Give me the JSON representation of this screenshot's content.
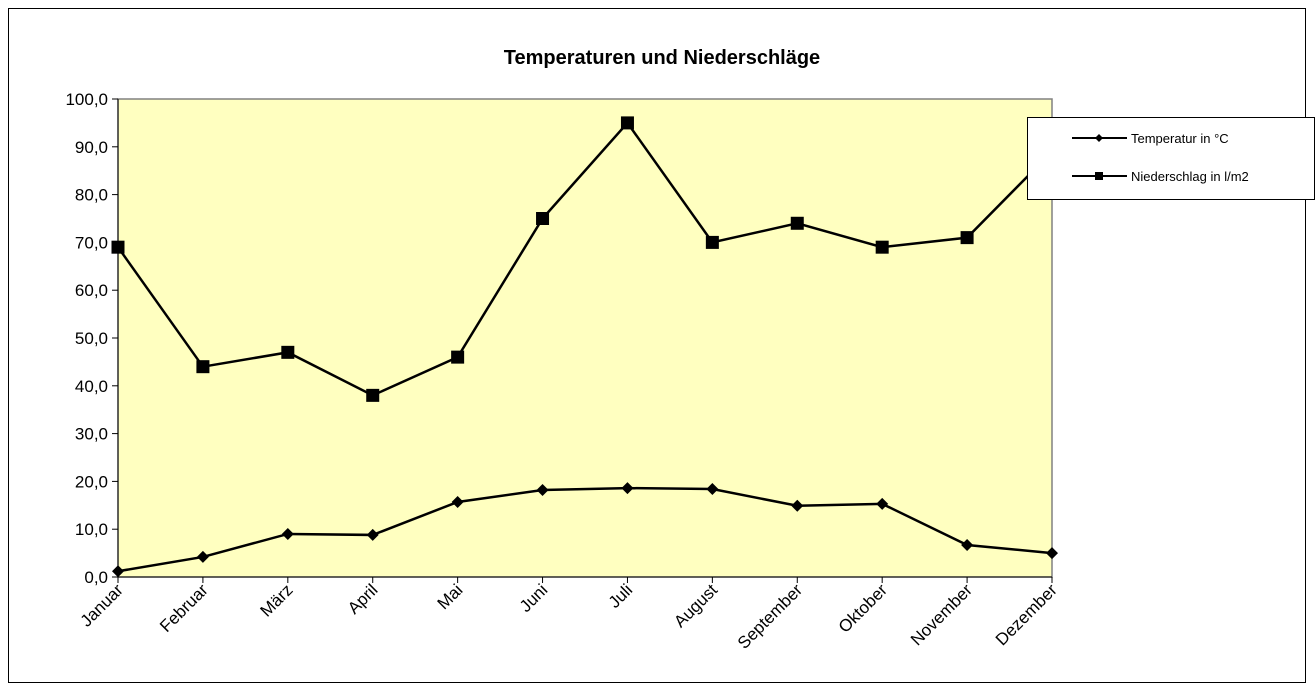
{
  "chart_data": {
    "type": "line",
    "title": "Temperaturen und Niederschläge",
    "categories": [
      "Januar",
      "Februar",
      "März",
      "April",
      "Mai",
      "Juni",
      "Juli",
      "August",
      "September",
      "Oktober",
      "November",
      "Dezember"
    ],
    "series": [
      {
        "name": "Temperatur in °C",
        "color": "#000000",
        "marker": "diamond",
        "values": [
          1.2,
          4.2,
          9.0,
          8.8,
          15.7,
          18.2,
          18.6,
          18.4,
          14.9,
          15.3,
          6.7,
          5.0
        ]
      },
      {
        "name": "Niederschlag in l/m2",
        "color": "#000000",
        "marker": "square",
        "values": [
          69,
          44,
          47,
          38,
          46,
          75,
          95,
          70,
          74,
          69,
          71,
          89
        ]
      }
    ],
    "ylim": [
      0,
      100
    ],
    "yticks": [
      {
        "value": 0,
        "label": "0,0"
      },
      {
        "value": 10,
        "label": "10,0"
      },
      {
        "value": 20,
        "label": "20,0"
      },
      {
        "value": 30,
        "label": "30,0"
      },
      {
        "value": 40,
        "label": "40,0"
      },
      {
        "value": 50,
        "label": "50,0"
      },
      {
        "value": 60,
        "label": "60,0"
      },
      {
        "value": 70,
        "label": "70,0"
      },
      {
        "value": 80,
        "label": "80,0"
      },
      {
        "value": 90,
        "label": "90,0"
      },
      {
        "value": 100,
        "label": "100,0"
      }
    ],
    "plot_background": "#ffffc0",
    "legend": "right"
  }
}
